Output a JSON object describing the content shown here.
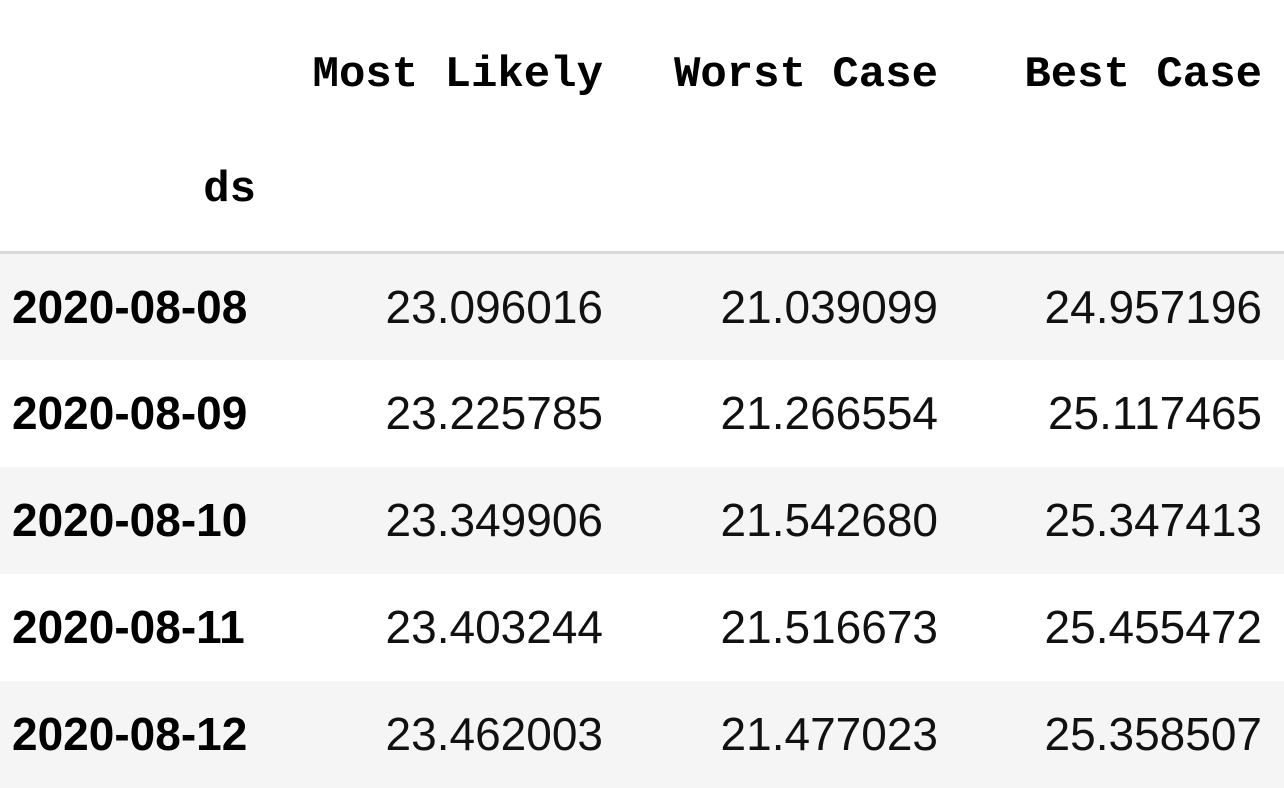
{
  "table": {
    "columns": [
      "Most Likely",
      "Worst Case",
      "Best Case"
    ],
    "index_name": "ds",
    "rows": [
      {
        "date": "2020-08-08",
        "values": [
          "23.096016",
          "21.039099",
          "24.957196"
        ]
      },
      {
        "date": "2020-08-09",
        "values": [
          "23.225785",
          "21.266554",
          "25.117465"
        ]
      },
      {
        "date": "2020-08-10",
        "values": [
          "23.349906",
          "21.542680",
          "25.347413"
        ]
      },
      {
        "date": "2020-08-11",
        "values": [
          "23.403244",
          "21.516673",
          "25.455472"
        ]
      },
      {
        "date": "2020-08-12",
        "values": [
          "23.462003",
          "21.477023",
          "25.358507"
        ]
      }
    ]
  },
  "colors": {
    "stripe": "#f5f5f5",
    "header_rule": "#d9d9d9"
  }
}
